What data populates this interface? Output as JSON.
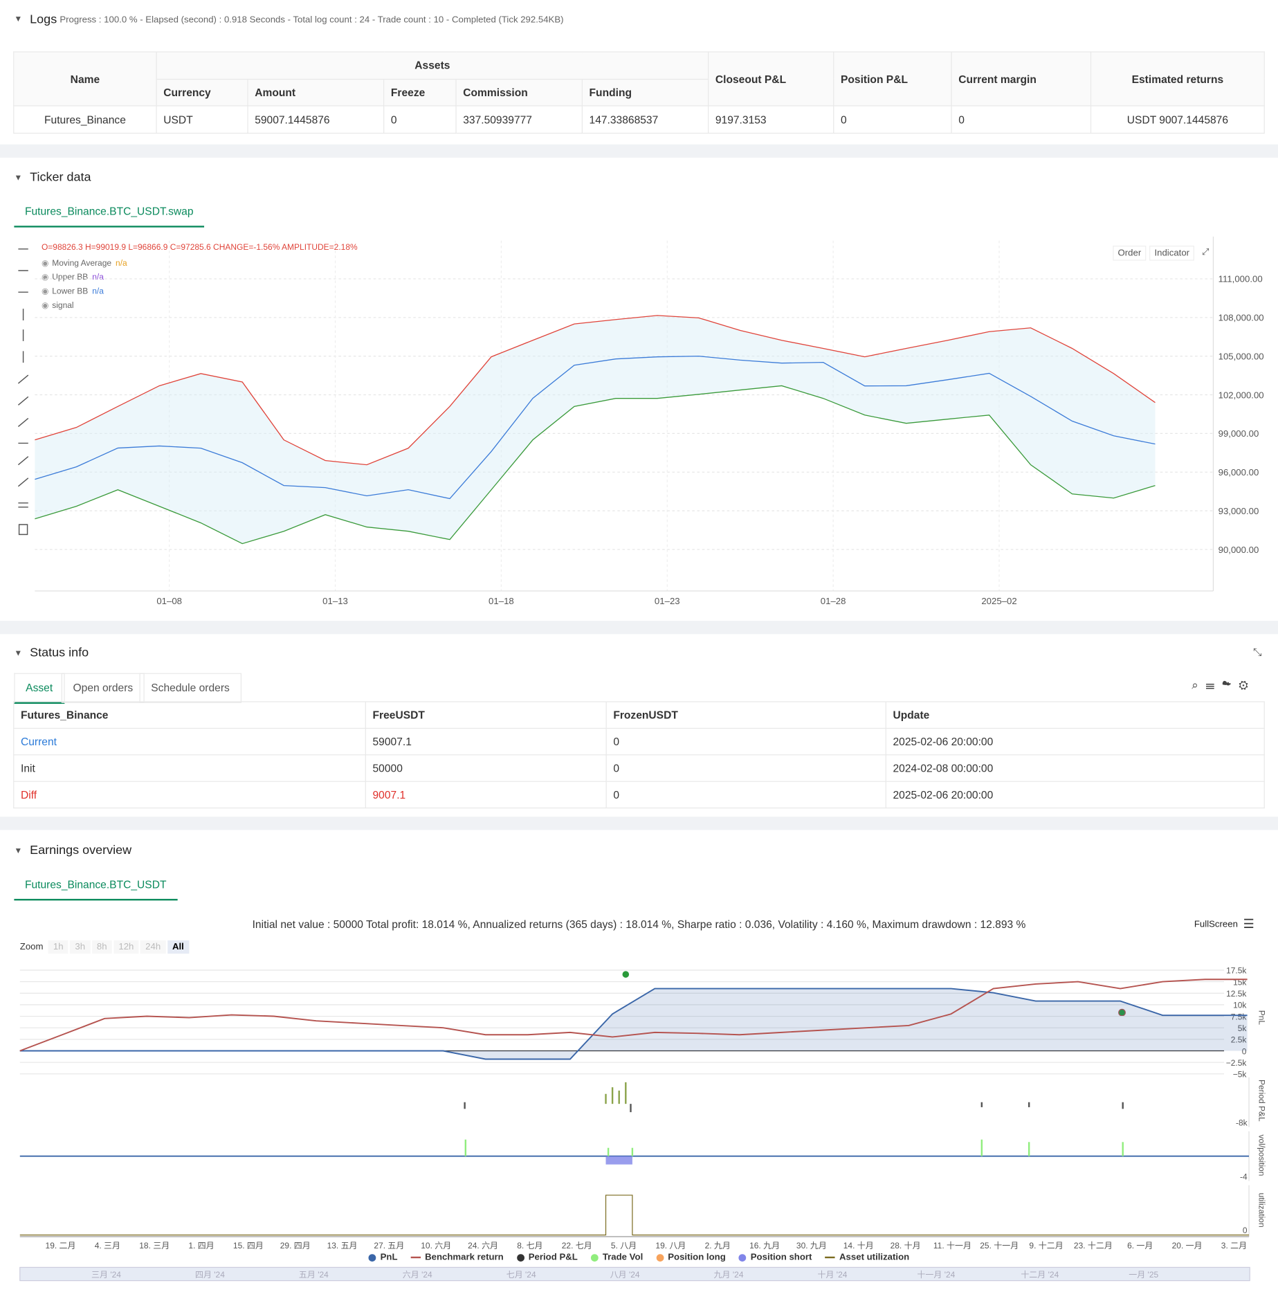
{
  "logs": {
    "title": "Logs",
    "summary": "Progress : 100.0 % - Elapsed (second) : 0.918  Seconds - Total log count : 24 - Trade count : 10 - Completed (Tick 292.54KB)",
    "table": {
      "group": "Assets",
      "headers": [
        "Name",
        "Currency",
        "Amount",
        "Freeze",
        "Commission",
        "Funding",
        "Closeout P&L",
        "Position P&L",
        "Current margin",
        "Estimated returns"
      ],
      "rows": [
        [
          "Futures_Binance",
          "USDT",
          "59007.1445876",
          "0",
          "337.50939777",
          "147.33868537",
          "9197.3153",
          "0",
          "0",
          "USDT 9007.1445876"
        ]
      ]
    }
  },
  "ticker": {
    "title": "Ticker data",
    "tab": "Futures_Binance.BTC_USDT.swap",
    "buttons": [
      "Order",
      "Indicator"
    ],
    "ohlc": "O=98826.3 H=99019.9 L=96866.9 C=97285.6 CHANGE=-1.56% AMPLITUDE=2.18%",
    "legend": [
      {
        "name": "Moving Average",
        "value": "n/a"
      },
      {
        "name": "Upper BB",
        "value": "n/a"
      },
      {
        "name": "Lower BB",
        "value": "n/a"
      },
      {
        "name": "signal"
      }
    ]
  },
  "status": {
    "title": "Status info",
    "tabs": [
      "Asset",
      "Open orders",
      "Schedule orders"
    ],
    "headers": [
      "Futures_Binance",
      "FreeUSDT",
      "FrozenUSDT",
      "Update"
    ],
    "rows": [
      [
        "Current",
        "59007.1",
        "0",
        "2025-02-06 20:00:00"
      ],
      [
        "Init",
        "50000",
        "0",
        "2024-02-08 00:00:00"
      ],
      [
        "Diff",
        "9007.1",
        "0",
        "2025-02-06 20:00:00"
      ]
    ]
  },
  "earnings": {
    "title": "Earnings overview",
    "tab": "Futures_Binance.BTC_USDT",
    "summary": "Initial net value : 50000  Total profit: 18.014 %, Annualized returns (365 days) : 18.014 %, Sharpe ratio : 0.036, Volatility : 4.160 %, Maximum drawdown : 12.893 %",
    "zoom": "Zoom",
    "zoom_buttons": [
      "1h",
      "3h",
      "8h",
      "12h",
      "24h",
      "All"
    ],
    "fullscreen": "FullScreen",
    "panel_labels": [
      "PnL",
      "Period P&L",
      "vol/position",
      "utilization"
    ],
    "panel_ticks": [
      "-8k",
      "-4",
      "0"
    ],
    "legend": [
      {
        "name": "PnL",
        "color": "#3a66a8"
      },
      {
        "name": "Benchmark return",
        "color": "#b5534f"
      },
      {
        "name": "Period P&L",
        "color": "#333333"
      },
      {
        "name": "Trade Vol",
        "color": "#90ed7d"
      },
      {
        "name": "Position long",
        "color": "#f7a35c"
      },
      {
        "name": "Position short",
        "color": "#8085e9"
      },
      {
        "name": "Asset utilization",
        "color": "#7a6a1e"
      }
    ],
    "navigator": [
      "三月 '24",
      "四月 '24",
      "五月 '24",
      "六月 '24",
      "七月 '24",
      "八月 '24",
      "九月 '24",
      "十月 '24",
      "十一月 '24",
      "十二月 '24",
      "一月 '25"
    ]
  },
  "chart_data": [
    {
      "type": "line",
      "ylim": [
        86780,
        113960
      ],
      "yticks": [
        {
          "value": 111000,
          "label": "111,000.00"
        },
        {
          "value": 108000,
          "label": "108,000.00"
        },
        {
          "value": 105000,
          "label": "105,000.00"
        },
        {
          "value": 102000,
          "label": "102,000.00"
        },
        {
          "value": 99000,
          "label": "99,000.00"
        },
        {
          "value": 96000,
          "label": "96,000.00"
        },
        {
          "value": 93000,
          "label": "93,000.00"
        },
        {
          "value": 90000,
          "label": "90,000.00"
        }
      ],
      "xticks": [
        "01–08",
        "01–13",
        "01–18",
        "01–23",
        "01–28",
        "2025–02"
      ],
      "series": [
        {
          "name": "Moving Average",
          "color": "#3b7bd8",
          "values": [
            95440,
            96410,
            97870,
            98030,
            97860,
            96730,
            94960,
            94800,
            94160,
            94640,
            93940,
            97600,
            101730,
            104300,
            104780,
            104940,
            105000,
            104690,
            104460,
            104520,
            102690,
            102700,
            103170,
            103670,
            101880,
            99960,
            98820,
            98180
          ]
        },
        {
          "name": "Upper BB",
          "color": "#e0443a",
          "values": [
            98500,
            99470,
            101100,
            102700,
            103650,
            103000,
            98500,
            96900,
            96570,
            97860,
            101100,
            104950,
            106230,
            107500,
            107840,
            108160,
            107970,
            107000,
            106230,
            105600,
            104950,
            105600,
            106230,
            106900,
            107200,
            105600,
            103650,
            101400
          ]
        },
        {
          "name": "Lower BB",
          "color": "#3a9a3a",
          "values": [
            92380,
            93350,
            94630,
            93350,
            92060,
            90450,
            91410,
            92700,
            91740,
            91410,
            90770,
            94630,
            98500,
            101100,
            101720,
            101720,
            102040,
            102370,
            102700,
            101720,
            100430,
            99790,
            100110,
            100430,
            96570,
            94310,
            93990,
            94960
          ]
        }
      ]
    },
    {
      "type": "line",
      "ylim": [
        -5200,
        19100
      ],
      "yticks": [
        {
          "value": 17500,
          "label": "17.5k"
        },
        {
          "value": 15000,
          "label": "15k"
        },
        {
          "value": 12500,
          "label": "12.5k"
        },
        {
          "value": 10000,
          "label": "10k"
        },
        {
          "value": 7500,
          "label": "7.5k"
        },
        {
          "value": 5000,
          "label": "5k"
        },
        {
          "value": 2500,
          "label": "2.5k"
        },
        0,
        {
          "value": -2500,
          "label": "−2.5k"
        },
        {
          "value": -5000,
          "label": "−5k"
        }
      ],
      "xticks": [
        "19. 二月",
        "4. 三月",
        "18. 三月",
        "1. 四月",
        "15. 四月",
        "29. 四月",
        "13. 五月",
        "27. 五月",
        "10. 六月",
        "24. 六月",
        "8. 七月",
        "22. 七月",
        "5. 八月",
        "19. 八月",
        "2. 九月",
        "16. 九月",
        "30. 九月",
        "14. 十月",
        "28. 十月",
        "11. 十一月",
        "25. 十一月",
        "9. 十二月",
        "23. 十二月",
        "6. 一月",
        "20. 一月",
        "3. 二月"
      ],
      "series": [
        {
          "name": "PnL",
          "color": "#3a66a8",
          "values": [
            0,
            0,
            0,
            0,
            0,
            0,
            0,
            0,
            0,
            0,
            0,
            -1800,
            -1800,
            -1800,
            8000,
            13500,
            13500,
            13500,
            13500,
            13500,
            13500,
            13500,
            13500,
            12600,
            10800,
            10800,
            10800,
            7700,
            7700,
            7700
          ]
        },
        {
          "name": "Benchmark return",
          "color": "#b5534f",
          "values": [
            0,
            3500,
            7000,
            7500,
            7200,
            7800,
            7500,
            6500,
            6000,
            5500,
            5000,
            3500,
            3500,
            4000,
            3000,
            4000,
            3800,
            3500,
            4000,
            4500,
            5000,
            5500,
            8000,
            13500,
            14500,
            15000,
            13500,
            15000,
            15500,
            15500
          ]
        }
      ]
    }
  ]
}
